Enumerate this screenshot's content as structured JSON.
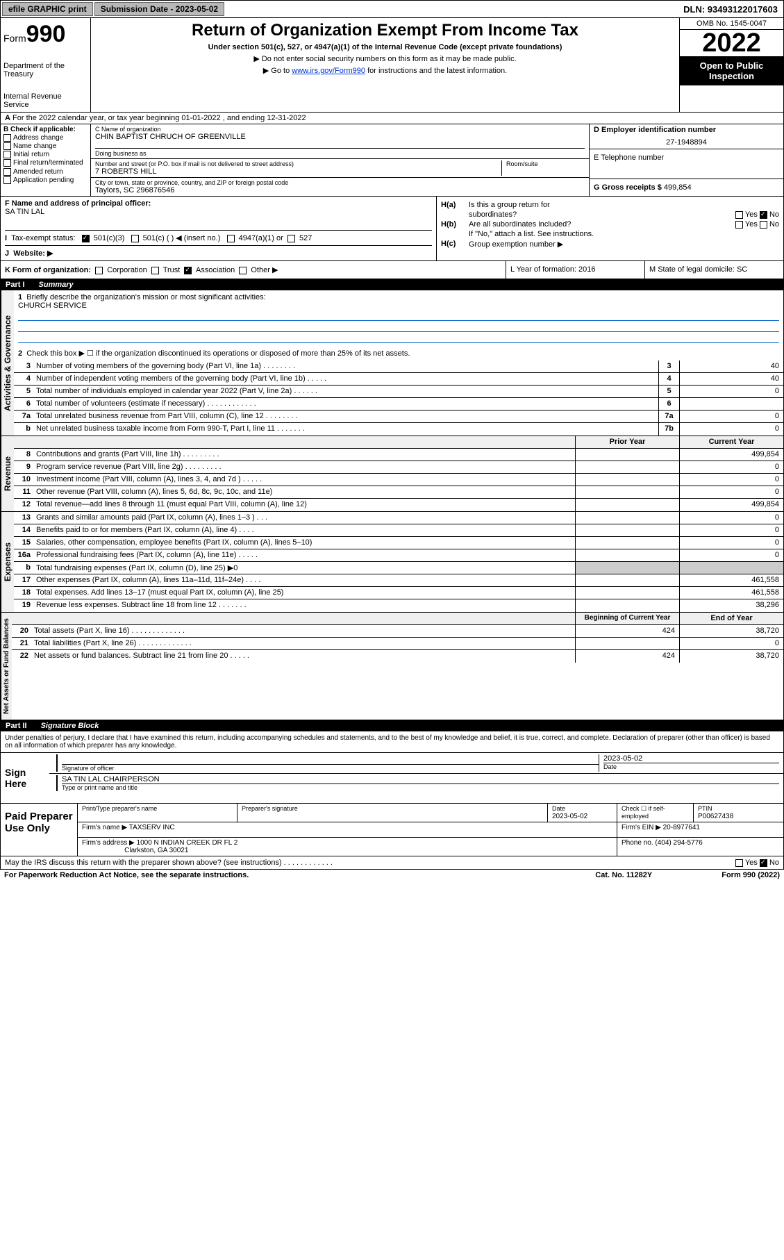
{
  "topbar": {
    "efile": "efile GRAPHIC print",
    "submission_label": "Submission Date - 2023-05-02",
    "dln": "DLN: 93493122017603"
  },
  "header": {
    "form_prefix": "Form",
    "form_num": "990",
    "title": "Return of Organization Exempt From Income Tax",
    "subtitle": "Under section 501(c), 527, or 4947(a)(1) of the Internal Revenue Code (except private foundations)",
    "line1": "▶ Do not enter social security numbers on this form as it may be made public.",
    "line2_pre": "▶ Go to ",
    "line2_link": "www.irs.gov/Form990",
    "line2_post": " for instructions and the latest information.",
    "dept": "Department of the Treasury",
    "irs": "Internal Revenue Service",
    "omb": "OMB No. 1545-0047",
    "year": "2022",
    "open": "Open to Public Inspection"
  },
  "row_a": "For the 2022 calendar year, or tax year beginning 01-01-2022     , and ending 12-31-2022",
  "box_b": {
    "title": "B Check if applicable:",
    "items": [
      "Address change",
      "Name change",
      "Initial return",
      "Final return/terminated",
      "Amended return",
      "Application pending"
    ]
  },
  "box_c": {
    "name_label": "C Name of organization",
    "name": "CHIN BAPTIST CHRUCH OF GREENVILLE",
    "dba_label": "Doing business as",
    "dba": "",
    "street_label": "Number and street (or P.O. box if mail is not delivered to street address)",
    "street": "7 ROBERTS HILL",
    "room_label": "Room/suite",
    "city_label": "City or town, state or province, country, and ZIP or foreign postal code",
    "city": "Taylors, SC  296876546"
  },
  "box_d": {
    "label": "D Employer identification number",
    "value": "27-1948894"
  },
  "box_e": {
    "label": "E Telephone number",
    "value": ""
  },
  "box_g": {
    "label": "G Gross receipts $",
    "value": "499,854"
  },
  "box_f": {
    "label": "F  Name and address of principal officer:",
    "value": "SA TIN LAL"
  },
  "box_h": {
    "ha": "Is this a group return for",
    "ha2": "subordinates?",
    "hb": "Are all subordinates included?",
    "hb_note": "If \"No,\" attach a list. See instructions.",
    "hc": "Group exemption number ▶"
  },
  "row_i": {
    "label": "Tax-exempt status:",
    "opts": [
      "501(c)(3)",
      "501(c) (   ) ◀ (insert no.)",
      "4947(a)(1) or",
      "527"
    ]
  },
  "row_j": {
    "label": "Website: ▶",
    "value": ""
  },
  "row_k": {
    "label": "K Form of organization:",
    "opts": [
      "Corporation",
      "Trust",
      "Association",
      "Other ▶"
    ]
  },
  "row_l": {
    "label": "L Year of formation: 2016"
  },
  "row_m": {
    "label": "M State of legal domicile: SC"
  },
  "part1": {
    "num": "Part I",
    "title": "Summary"
  },
  "summary": {
    "q1": "Briefly describe the organization's mission or most significant activities:",
    "q1_ans": "CHURCH SERVICE",
    "q2": "Check this box ▶ ☐  if the organization discontinued its operations or disposed of more than 25% of its net assets.",
    "lines": [
      {
        "n": "3",
        "t": "Number of voting members of the governing body (Part VI, line 1a)    .    .    .    .    .    .    .    .",
        "b": "3",
        "v": "40"
      },
      {
        "n": "4",
        "t": "Number of independent voting members of the governing body (Part VI, line 1b)   .    .    .    .    .",
        "b": "4",
        "v": "40"
      },
      {
        "n": "5",
        "t": "Total number of individuals employed in calendar year 2022 (Part V, line 2a)    .    .    .    .    .    .",
        "b": "5",
        "v": "0"
      },
      {
        "n": "6",
        "t": "Total number of volunteers (estimate if necessary)    .    .    .    .    .    .    .    .    .    .    .    .",
        "b": "6",
        "v": ""
      },
      {
        "n": "7a",
        "t": "Total unrelated business revenue from Part VIII, column (C), line 12   .    .    .    .    .    .    .    .",
        "b": "7a",
        "v": "0"
      },
      {
        "n": "b",
        "t": "Net unrelated business taxable income from Form 990-T, Part I, line 11   .    .    .    .    .    .    .",
        "b": "7b",
        "v": "0"
      }
    ],
    "prior_head": "Prior Year",
    "curr_head": "Current Year",
    "rev_lines": [
      {
        "n": "8",
        "t": "Contributions and grants (Part VIII, line 1h)    .    .    .    .    .    .    .    .    .",
        "p": "",
        "c": "499,854"
      },
      {
        "n": "9",
        "t": "Program service revenue (Part VIII, line 2g)    .    .    .    .    .    .    .    .    .",
        "p": "",
        "c": "0"
      },
      {
        "n": "10",
        "t": "Investment income (Part VIII, column (A), lines 3, 4, and 7d )    .    .    .    .    .",
        "p": "",
        "c": "0"
      },
      {
        "n": "11",
        "t": "Other revenue (Part VIII, column (A), lines 5, 6d, 8c, 9c, 10c, and 11e)",
        "p": "",
        "c": "0"
      },
      {
        "n": "12",
        "t": "Total revenue—add lines 8 through 11 (must equal Part VIII, column (A), line 12)",
        "p": "",
        "c": "499,854"
      }
    ],
    "exp_lines": [
      {
        "n": "13",
        "t": "Grants and similar amounts paid (Part IX, column (A), lines 1–3 )    .    .    .",
        "p": "",
        "c": "0"
      },
      {
        "n": "14",
        "t": "Benefits paid to or for members (Part IX, column (A), line 4)    .    .    .    .",
        "p": "",
        "c": "0"
      },
      {
        "n": "15",
        "t": "Salaries, other compensation, employee benefits (Part IX, column (A), lines 5–10)",
        "p": "",
        "c": "0"
      },
      {
        "n": "16a",
        "t": "Professional fundraising fees (Part IX, column (A), line 11e)    .    .    .    .    .",
        "p": "",
        "c": "0"
      },
      {
        "n": "b",
        "t": "Total fundraising expenses (Part IX, column (D), line 25) ▶0",
        "p": null,
        "c": null
      },
      {
        "n": "17",
        "t": "Other expenses (Part IX, column (A), lines 11a–11d, 11f–24e)   .    .    .    .",
        "p": "",
        "c": "461,558"
      },
      {
        "n": "18",
        "t": "Total expenses. Add lines 13–17 (must equal Part IX, column (A), line 25)",
        "p": "",
        "c": "461,558"
      },
      {
        "n": "19",
        "t": "Revenue less expenses. Subtract line 18 from line 12   .    .    .    .    .    .    .",
        "p": "",
        "c": "38,296"
      }
    ],
    "na_head1": "Beginning of Current Year",
    "na_head2": "End of Year",
    "na_lines": [
      {
        "n": "20",
        "t": "Total assets (Part X, line 16)   .    .    .    .    .    .    .    .    .    .    .    .    .",
        "p": "424",
        "c": "38,720"
      },
      {
        "n": "21",
        "t": "Total liabilities (Part X, line 26)   .    .    .    .    .    .    .    .    .    .    .    .    .",
        "p": "",
        "c": "0"
      },
      {
        "n": "22",
        "t": "Net assets or fund balances. Subtract line 21 from line 20   .    .    .    .    .",
        "p": "424",
        "c": "38,720"
      }
    ]
  },
  "vert_labels": {
    "gov": "Activities & Governance",
    "rev": "Revenue",
    "exp": "Expenses",
    "na": "Net Assets or Fund Balances"
  },
  "part2": {
    "num": "Part II",
    "title": "Signature Block"
  },
  "sig_text": "Under penalties of perjury, I declare that I have examined this return, including accompanying schedules and statements, and to the best of my knowledge and belief, it is true, correct, and complete. Declaration of preparer (other than officer) is based on all information of which preparer has any knowledge.",
  "sign": {
    "label": "Sign Here",
    "officer_label": "Signature of officer",
    "date_label": "Date",
    "date": "2023-05-02",
    "name": "SA TIN LAL CHAIRPERSON",
    "name_label": "Type or print name and title"
  },
  "preparer": {
    "label": "Paid Preparer Use Only",
    "name_label": "Print/Type preparer's name",
    "sig_label": "Preparer's signature",
    "date_label": "Date",
    "date": "2023-05-02",
    "check_label": "Check ☐ if self-employed",
    "ptin_label": "PTIN",
    "ptin": "P00627438",
    "firm_label": "Firm's name    ▶",
    "firm": "TAXSERV INC",
    "ein_label": "Firm's EIN ▶",
    "ein": "20-8977641",
    "addr_label": "Firm's address ▶",
    "addr1": "1000 N INDIAN CREEK DR FL 2",
    "addr2": "Clarkston, GA  30021",
    "phone_label": "Phone no.",
    "phone": "(404) 294-5776"
  },
  "footer": {
    "q": "May the IRS discuss this return with the preparer shown above? (see instructions)    .    .    .    .    .    .    .    .    .    .    .    .",
    "paperwork": "For Paperwork Reduction Act Notice, see the separate instructions.",
    "cat": "Cat. No. 11282Y",
    "form": "Form 990 (2022)"
  }
}
